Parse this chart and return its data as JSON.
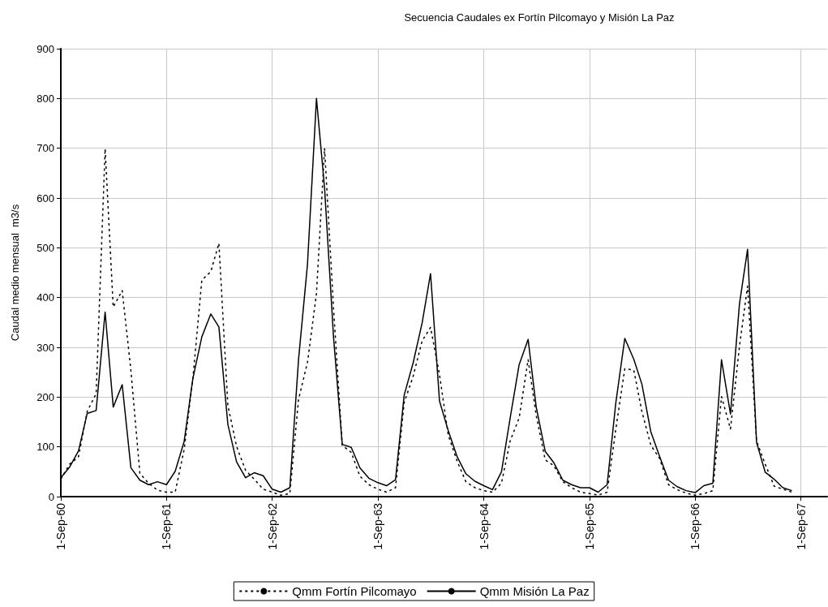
{
  "chart_data": {
    "type": "line",
    "title": "Secuencia Caudales ex Fortín Pilcomayo y Misión La Paz",
    "ylabel": "Caudal medio mensual  m3/s",
    "x": [
      "1960-09",
      "1960-10",
      "1960-11",
      "1960-12",
      "1961-01",
      "1961-02",
      "1961-03",
      "1961-04",
      "1961-05",
      "1961-06",
      "1961-07",
      "1961-08",
      "1961-09",
      "1961-10",
      "1961-11",
      "1961-12",
      "1962-01",
      "1962-02",
      "1962-03",
      "1962-04",
      "1962-05",
      "1962-06",
      "1962-07",
      "1962-08",
      "1962-09",
      "1962-10",
      "1962-11",
      "1962-12",
      "1963-01",
      "1963-02",
      "1963-03",
      "1963-04",
      "1963-05",
      "1963-06",
      "1963-07",
      "1963-08",
      "1963-09",
      "1963-10",
      "1963-11",
      "1963-12",
      "1964-01",
      "1964-02",
      "1964-03",
      "1964-04",
      "1964-05",
      "1964-06",
      "1964-07",
      "1964-08",
      "1964-09",
      "1964-10",
      "1964-11",
      "1964-12",
      "1965-01",
      "1965-02",
      "1965-03",
      "1965-04",
      "1965-05",
      "1965-06",
      "1965-07",
      "1965-08",
      "1965-09",
      "1965-10",
      "1965-11",
      "1965-12",
      "1966-01",
      "1966-02",
      "1966-03",
      "1966-04",
      "1966-05",
      "1966-06",
      "1966-07",
      "1966-08",
      "1966-09",
      "1966-10",
      "1966-11",
      "1966-12",
      "1967-01",
      "1967-02",
      "1967-03",
      "1967-04",
      "1967-05",
      "1967-06",
      "1967-07",
      "1967-08"
    ],
    "series": [
      {
        "name": "Qmm Fortín Pilcomayo",
        "color": "#000000",
        "line_style": "dotted",
        "values": [
          35,
          65,
          80,
          171,
          207,
          699,
          381,
          414,
          254,
          47,
          27,
          13,
          9,
          9,
          95,
          237,
          435,
          452,
          509,
          183,
          101,
          53,
          35,
          15,
          9,
          3,
          6,
          195,
          270,
          408,
          700,
          378,
          103,
          89,
          41,
          24,
          15,
          9,
          18,
          189,
          242,
          313,
          340,
          245,
          124,
          71,
          30,
          18,
          12,
          9,
          27,
          112,
          158,
          275,
          163,
          74,
          62,
          30,
          18,
          9,
          6,
          3,
          9,
          136,
          257,
          254,
          171,
          103,
          77,
          24,
          14,
          7,
          3,
          6,
          12,
          201,
          136,
          302,
          423,
          112,
          65,
          21,
          15,
          9
        ]
      },
      {
        "name": "Qmm Misión La Paz",
        "color": "#000000",
        "line_style": "solid",
        "values": [
          38,
          59,
          92,
          167,
          173,
          371,
          180,
          225,
          58,
          33,
          24,
          30,
          24,
          51,
          111,
          237,
          321,
          367,
          341,
          145,
          70,
          38,
          48,
          42,
          15,
          9,
          18,
          275,
          467,
          800,
          620,
          320,
          105,
          99,
          58,
          37,
          28,
          22,
          34,
          204,
          269,
          349,
          448,
          192,
          133,
          80,
          46,
          31,
          22,
          14,
          50,
          158,
          265,
          316,
          180,
          91,
          68,
          33,
          24,
          18,
          18,
          9,
          24,
          189,
          318,
          276,
          226,
          130,
          81,
          33,
          20,
          12,
          8,
          22,
          27,
          275,
          166,
          387,
          497,
          109,
          49,
          35,
          18,
          12
        ]
      }
    ],
    "xlim": [
      "1960-09-01",
      "1967-12-01"
    ],
    "xticks": [
      {
        "value": "1960-09-01",
        "label": "1-Sep-60"
      },
      {
        "value": "1961-09-01",
        "label": "1-Sep-61"
      },
      {
        "value": "1962-09-01",
        "label": "1-Sep-62"
      },
      {
        "value": "1963-09-01",
        "label": "1-Sep-63"
      },
      {
        "value": "1964-09-01",
        "label": "1-Sep-64"
      },
      {
        "value": "1965-09-01",
        "label": "1-Sep-65"
      },
      {
        "value": "1966-09-01",
        "label": "1-Sep-66"
      },
      {
        "value": "1967-09-01",
        "label": "1-Sep-67"
      }
    ],
    "ylim": [
      0,
      900
    ],
    "yticks": [
      0,
      100,
      200,
      300,
      400,
      500,
      600,
      700,
      800,
      900
    ],
    "grid": true,
    "legend": "bottom",
    "marker": "none"
  }
}
